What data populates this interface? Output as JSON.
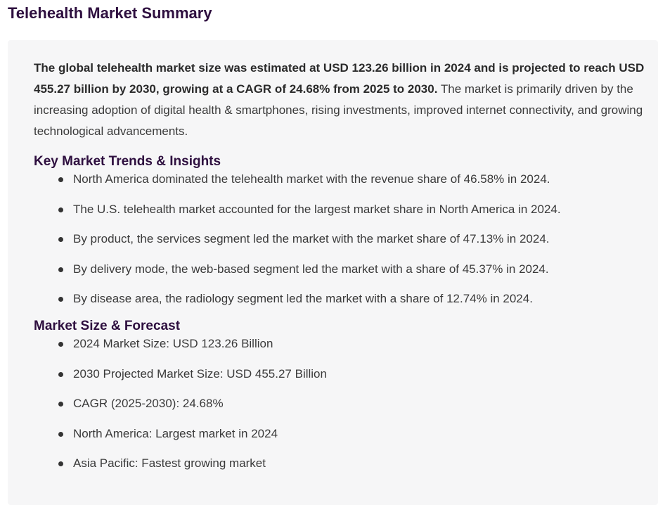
{
  "page": {
    "title": "Telehealth Market Summary"
  },
  "summary": {
    "intro_bold": "The global telehealth market size was estimated at USD 123.26 billion in 2024 and is projected to reach USD 455.27 billion by 2030, growing at a CAGR of 24.68% from 2025 to 2030.",
    "intro_rest": " The market is primarily driven by the increasing adoption of digital health & smartphones, rising investments, improved internet connectivity, and growing technological advancements."
  },
  "trends": {
    "heading": "Key Market Trends & Insights",
    "items": [
      "North America dominated the telehealth market with the revenue share of 46.58% in 2024.",
      "The U.S. telehealth market accounted for the largest market share in North America in 2024.",
      "By product, the services segment led the market with the market share of 47.13% in 2024.",
      "By delivery mode, the web-based segment led the market with a share of 45.37% in 2024.",
      "By disease area, the radiology segment led the market with a share of 12.74% in 2024."
    ]
  },
  "forecast": {
    "heading": "Market Size & Forecast",
    "items": [
      "2024 Market Size: USD 123.26 Billion",
      "2030 Projected Market Size: USD 455.27 Billion",
      "CAGR (2025-2030): 24.68%",
      "North America: Largest market in 2024",
      "Asia Pacific: Fastest growing market"
    ]
  },
  "colors": {
    "heading": "#2e0f3f",
    "panel_background": "#f6f6f7",
    "body_text": "#3a3a3a"
  }
}
